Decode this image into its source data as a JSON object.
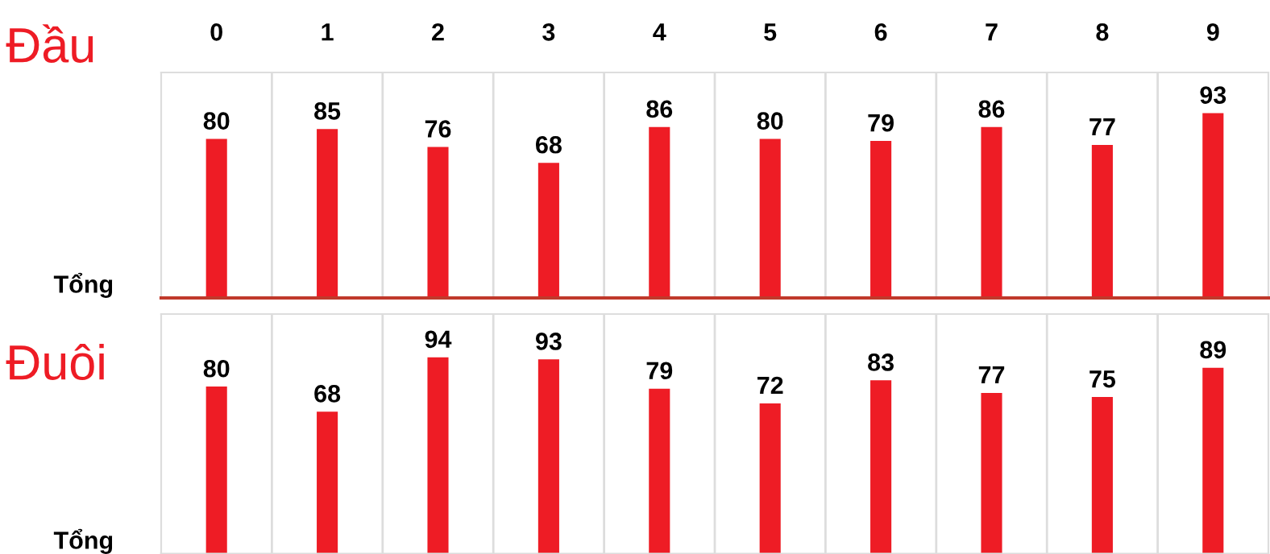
{
  "chart_data": [
    {
      "type": "bar",
      "title": "Đầu",
      "ylabel": "Tổng",
      "categories": [
        "0",
        "1",
        "2",
        "3",
        "4",
        "5",
        "6",
        "7",
        "8",
        "9"
      ],
      "values": [
        80,
        85,
        76,
        68,
        86,
        80,
        79,
        86,
        77,
        93
      ],
      "color": "#ee1c25",
      "data_labels": true
    },
    {
      "type": "bar",
      "title": "Đuôi",
      "ylabel": "Tổng",
      "categories": [
        null,
        null,
        null,
        null,
        null,
        null,
        null,
        null,
        null,
        null
      ],
      "values": [
        80,
        68,
        94,
        93,
        79,
        72,
        83,
        77,
        75,
        89
      ],
      "color": "#ee1c25",
      "data_labels": true
    }
  ]
}
